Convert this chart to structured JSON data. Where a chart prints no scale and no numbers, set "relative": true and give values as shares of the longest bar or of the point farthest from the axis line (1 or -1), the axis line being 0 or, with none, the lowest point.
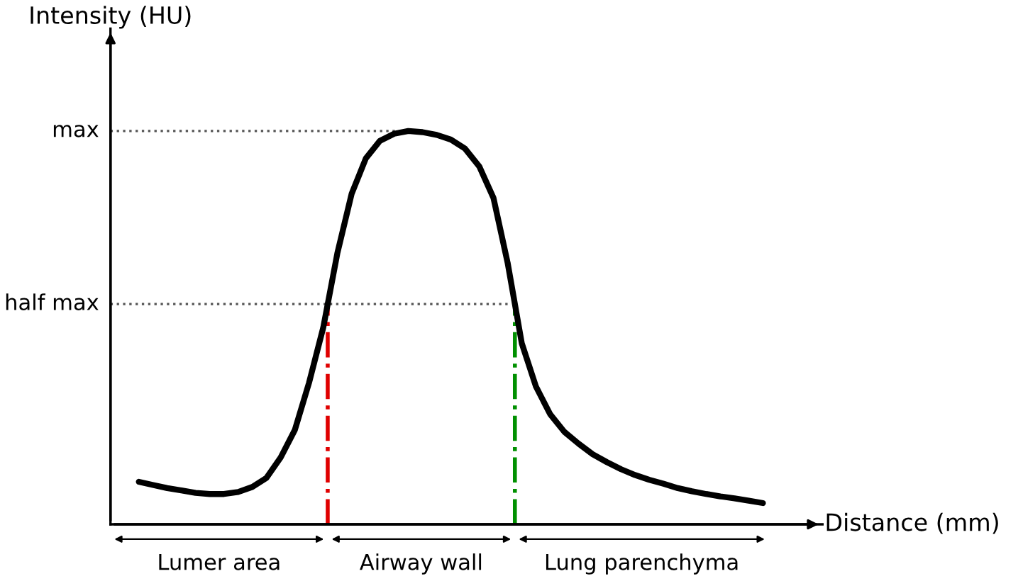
{
  "chart_data": {
    "type": "line",
    "relative": true,
    "xlabel": "Distance (mm)",
    "ylabel": "Intensity (HU)",
    "legend": false,
    "marker": "none",
    "line_style": "solid",
    "categories": [
      null,
      null,
      null,
      null,
      null,
      null,
      null,
      null,
      null,
      null,
      null,
      null,
      null,
      null,
      null,
      null,
      null,
      null,
      null,
      null,
      null,
      null,
      null,
      null,
      null,
      null,
      null,
      null,
      null,
      null,
      null,
      null,
      null,
      null,
      null,
      null,
      null,
      null,
      null,
      null,
      null,
      null,
      null,
      null,
      null
    ],
    "series": [
      {
        "color": "#000000",
        "values": [
          0.108,
          0.1,
          0.092,
          0.086,
          0.08,
          0.077,
          0.077,
          0.082,
          0.095,
          0.118,
          0.17,
          0.24,
          0.36,
          0.5,
          0.69,
          0.84,
          0.93,
          0.975,
          0.993,
          1,
          0.997,
          0.99,
          0.978,
          0.955,
          0.91,
          0.83,
          0.665,
          0.46,
          0.35,
          0.28,
          0.235,
          0.205,
          0.178,
          0.158,
          0.14,
          0.125,
          0.113,
          0.103,
          0.092,
          0.084,
          0.077,
          0.071,
          0.066,
          0.06,
          0.054
        ]
      }
    ],
    "ref_lines": [
      {
        "axis": "y",
        "value": 1,
        "label": "max",
        "color": "#555555",
        "line_style": "dotted"
      },
      {
        "axis": "y",
        "value": 0.56,
        "label": "half max",
        "color": "#555555",
        "line_style": "dotted"
      }
    ],
    "annotations": [
      "Lumer area",
      "Airway wall",
      "Lung parenchyma"
    ]
  }
}
